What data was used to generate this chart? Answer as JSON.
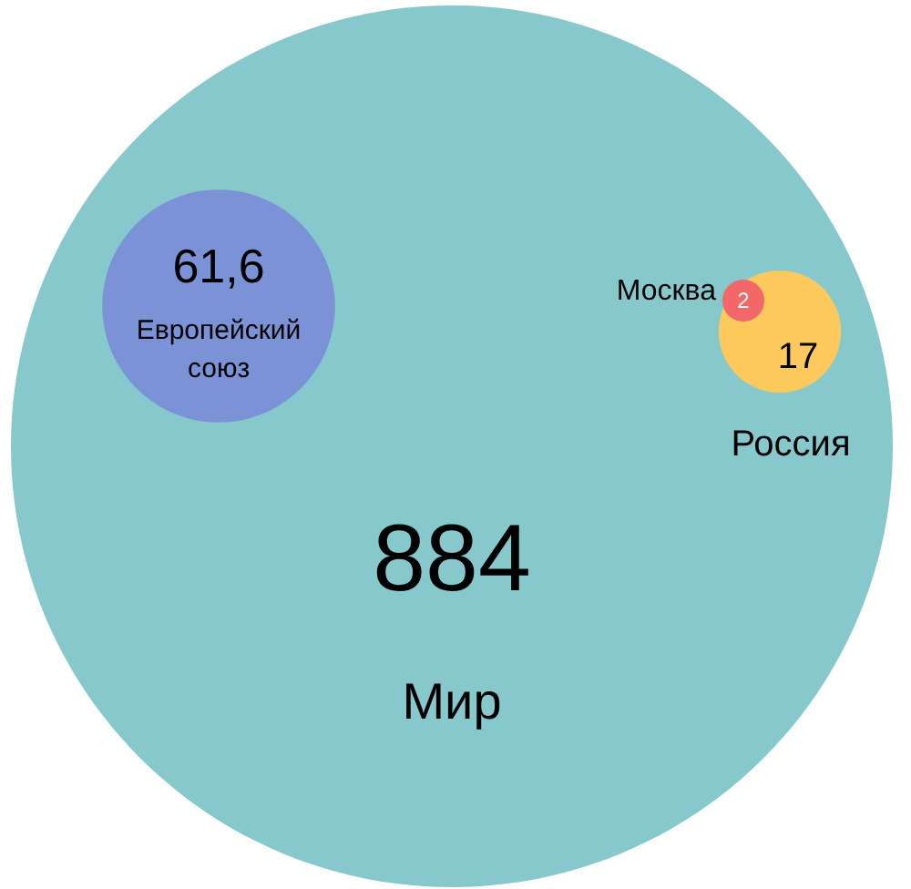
{
  "chart_data": {
    "type": "other",
    "categories": [
      "Мир",
      "Европейский союз",
      "Россия",
      "Москва"
    ],
    "values": [
      884,
      61.6,
      17,
      2
    ],
    "value_labels": [
      "884",
      "61,6",
      "17",
      "2"
    ],
    "colors": [
      "#86c8cc",
      "#7b93d6",
      "#fdc95c",
      "#f26868"
    ]
  }
}
